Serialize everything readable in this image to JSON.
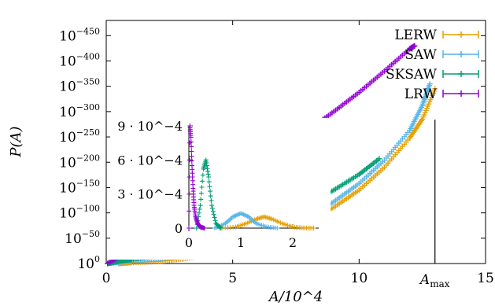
{
  "chart_data": [
    {
      "type": "scatter",
      "title": "",
      "xlabel": "A/10^4",
      "ylabel": "P(A)",
      "xlim": [
        0,
        15
      ],
      "ylim_log10": [
        -480,
        0
      ],
      "y_scale": "log",
      "legend_position": "top-right",
      "x_ticks": [
        "0",
        "5",
        "10",
        "15"
      ],
      "y_ticks": [
        {
          "base": "10",
          "exp": "0"
        },
        {
          "base": "10",
          "exp": "−50"
        },
        {
          "base": "10",
          "exp": "−100"
        },
        {
          "base": "10",
          "exp": "−150"
        },
        {
          "base": "10",
          "exp": "−200"
        },
        {
          "base": "10",
          "exp": "−250"
        },
        {
          "base": "10",
          "exp": "−300"
        },
        {
          "base": "10",
          "exp": "−350"
        },
        {
          "base": "10",
          "exp": "−400"
        },
        {
          "base": "10",
          "exp": "−450"
        }
      ],
      "annotations": [
        {
          "text": "A",
          "sub": "max",
          "x": 13
        }
      ],
      "series": [
        {
          "name": "LERW",
          "color": "#e69f00",
          "x": [
            0.3,
            0.5,
            1,
            2,
            3,
            4,
            5,
            6,
            7,
            8,
            9,
            10,
            11,
            12,
            12.5,
            13
          ],
          "log10_y": [
            -20,
            0,
            -2,
            -4,
            -9,
            -17,
            -29,
            -43,
            -61,
            -84,
            -111,
            -145,
            -190,
            -248,
            -285,
            -345
          ]
        },
        {
          "name": "SAW",
          "color": "#56b4e9",
          "x": [
            0.05,
            0.5,
            1,
            2,
            3,
            4,
            5,
            6,
            7,
            8,
            9,
            10,
            11,
            12,
            12.5,
            12.8
          ],
          "log10_y": [
            0,
            -3,
            -5,
            -9,
            -15,
            -24,
            -36,
            -51,
            -70,
            -93,
            -122,
            -158,
            -204,
            -263,
            -312,
            -355
          ]
        },
        {
          "name": "SKSAW",
          "color": "#009e73",
          "x": [
            0.05,
            0.5,
            1,
            2,
            3,
            4,
            5,
            6,
            7,
            8,
            9,
            10,
            10.8
          ],
          "log10_y": [
            0,
            -5,
            -8,
            -17,
            -28,
            -42,
            -58,
            -76,
            -96,
            -119,
            -145,
            -176,
            -207
          ]
        },
        {
          "name": "LRW",
          "color": "#9400d3",
          "x": [
            0.05,
            1,
            2,
            3,
            4,
            5,
            6,
            7,
            8,
            9,
            10,
            11,
            12,
            12.2
          ],
          "log10_y": [
            0,
            -27,
            -62,
            -97,
            -131,
            -164,
            -196,
            -230,
            -264,
            -300,
            -338,
            -380,
            -424,
            -430
          ]
        }
      ]
    },
    {
      "type": "line",
      "title": "",
      "xlabel": "",
      "ylabel": "",
      "xlim": [
        0,
        2.5
      ],
      "ylim": [
        0,
        0.0009
      ],
      "x_ticks": [
        "0",
        "1",
        "2"
      ],
      "y_ticks": [
        "0",
        "3 · 10^−4",
        "6 · 10^−4",
        "9 · 10^−4"
      ],
      "series": [
        {
          "name": "LERW",
          "color": "#e69f00",
          "x": [
            0.6,
            0.9,
            1.1,
            1.3,
            1.45,
            1.6,
            1.8,
            2.0,
            2.2,
            2.4
          ],
          "y": [
            0,
            1e-05,
            4e-05,
            8e-05,
            0.0001,
            8e-05,
            4e-05,
            1e-05,
            2e-06,
            0
          ]
        },
        {
          "name": "SAW",
          "color": "#56b4e9",
          "x": [
            0.5,
            0.7,
            0.85,
            1.0,
            1.15,
            1.3,
            1.5,
            1.7
          ],
          "y": [
            0,
            4e-05,
            0.0001,
            0.00013,
            0.0001,
            4e-05,
            1e-05,
            0
          ]
        },
        {
          "name": "SKSAW",
          "color": "#009e73",
          "x": [
            0.15,
            0.22,
            0.28,
            0.33,
            0.38,
            0.44,
            0.52,
            0.62
          ],
          "y": [
            0,
            0.0002,
            0.00052,
            0.0006,
            0.00045,
            0.0002,
            4e-05,
            0
          ]
        },
        {
          "name": "LRW",
          "color": "#9400d3",
          "x": [
            0.0,
            0.02,
            0.04,
            0.06,
            0.08,
            0.1,
            0.13,
            0.17,
            0.22,
            0.3
          ],
          "y": [
            0,
            0.0009,
            0.0008,
            0.00055,
            0.00035,
            0.0002,
            0.0001,
            4e-05,
            1e-05,
            0
          ]
        }
      ]
    }
  ]
}
